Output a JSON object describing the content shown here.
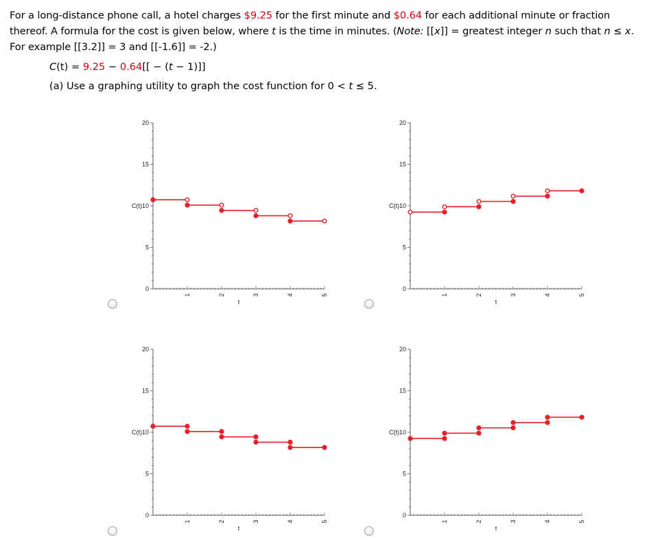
{
  "problem": {
    "line1_a": "For a long-distance phone call, a hotel charges ",
    "price_first": "$9.25",
    "line1_b": " for the first minute and ",
    "price_additional": "$0.64",
    "line1_c": " for each additional minute or fraction",
    "line2_a": "thereof. A formula for the cost is given below, where ",
    "line2_t": "t",
    "line2_b": " is the time in minutes. (",
    "line2_note": "Note:",
    "line2_c": " [[",
    "line2_x": "x",
    "line2_d": "]] = greatest integer ",
    "line2_n": "n",
    "line2_e": " such that ",
    "line2_n2": "n",
    "line2_f": " ≤ ",
    "line2_x2": "x",
    "line2_g": ".",
    "line3": "For example [[3.2]] = 3 and [[-1.6]] = -2.)"
  },
  "formula": {
    "lhs_c": "C",
    "lhs_rest": "(t) = ",
    "const": "9.25",
    "minus": " − ",
    "coef": "0.64",
    "bracket_open": "[[ − (",
    "t": "t",
    "bracket_close": " − 1)]]"
  },
  "part_a": {
    "text_a": "(a) Use a graphing utility to graph the cost function for 0 < ",
    "t": "t",
    "text_b": " ≤ 5."
  },
  "colors": {
    "accent_red": "#d8000c",
    "plot_red": "#e8202a",
    "axis": "#555555"
  },
  "chart_data": [
    {
      "type": "line",
      "option": "top-left",
      "xlabel": "t",
      "ylabel": "C(t)",
      "xlim": [
        0,
        5
      ],
      "ylim": [
        0,
        20
      ],
      "xticks": [
        "1",
        "2",
        "3",
        "4",
        "5"
      ],
      "yticks": [
        "0",
        "5",
        "10",
        "15",
        "20"
      ],
      "segments": [
        {
          "x": [
            0,
            1
          ],
          "y": [
            10.73,
            10.73
          ],
          "left": "closed",
          "right": "open"
        },
        {
          "x": [
            1,
            2
          ],
          "y": [
            10.09,
            10.09
          ],
          "left": "closed",
          "right": "open"
        },
        {
          "x": [
            2,
            3
          ],
          "y": [
            9.45,
            9.45
          ],
          "left": "closed",
          "right": "open"
        },
        {
          "x": [
            3,
            4
          ],
          "y": [
            8.81,
            8.81
          ],
          "left": "closed",
          "right": "open"
        },
        {
          "x": [
            4,
            5
          ],
          "y": [
            8.17,
            8.17
          ],
          "left": "closed",
          "right": "open"
        }
      ]
    },
    {
      "type": "line",
      "option": "top-right",
      "xlabel": "t",
      "ylabel": "C(t)",
      "xlim": [
        0,
        5
      ],
      "ylim": [
        0,
        20
      ],
      "xticks": [
        "1",
        "2",
        "3",
        "4",
        "5"
      ],
      "yticks": [
        "0",
        "5",
        "10",
        "15",
        "20"
      ],
      "segments": [
        {
          "x": [
            0,
            1
          ],
          "y": [
            9.25,
            9.25
          ],
          "left": "open",
          "right": "closed"
        },
        {
          "x": [
            1,
            2
          ],
          "y": [
            9.89,
            9.89
          ],
          "left": "open",
          "right": "closed"
        },
        {
          "x": [
            2,
            3
          ],
          "y": [
            10.53,
            10.53
          ],
          "left": "open",
          "right": "closed"
        },
        {
          "x": [
            3,
            4
          ],
          "y": [
            11.17,
            11.17
          ],
          "left": "open",
          "right": "closed"
        },
        {
          "x": [
            4,
            5
          ],
          "y": [
            11.81,
            11.81
          ],
          "left": "open",
          "right": "closed"
        }
      ]
    },
    {
      "type": "line",
      "option": "bottom-left",
      "xlabel": "t",
      "ylabel": "C(t)",
      "xlim": [
        0,
        5
      ],
      "ylim": [
        0,
        20
      ],
      "xticks": [
        "1",
        "2",
        "3",
        "4",
        "5"
      ],
      "yticks": [
        "0",
        "5",
        "10",
        "15",
        "20"
      ],
      "segments": [
        {
          "x": [
            0,
            1
          ],
          "y": [
            10.73,
            10.73
          ],
          "left": "closed",
          "right": "closed"
        },
        {
          "x": [
            1,
            2
          ],
          "y": [
            10.09,
            10.09
          ],
          "left": "closed",
          "right": "closed"
        },
        {
          "x": [
            2,
            3
          ],
          "y": [
            9.45,
            9.45
          ],
          "left": "closed",
          "right": "closed"
        },
        {
          "x": [
            3,
            4
          ],
          "y": [
            8.81,
            8.81
          ],
          "left": "closed",
          "right": "closed"
        },
        {
          "x": [
            4,
            5
          ],
          "y": [
            8.17,
            8.17
          ],
          "left": "closed",
          "right": "closed"
        }
      ]
    },
    {
      "type": "line",
      "option": "bottom-right",
      "xlabel": "t",
      "ylabel": "C(t)",
      "xlim": [
        0,
        5
      ],
      "ylim": [
        0,
        20
      ],
      "xticks": [
        "1",
        "2",
        "3",
        "4",
        "5"
      ],
      "yticks": [
        "0",
        "5",
        "10",
        "15",
        "20"
      ],
      "segments": [
        {
          "x": [
            0,
            1
          ],
          "y": [
            9.25,
            9.25
          ],
          "left": "closed",
          "right": "closed"
        },
        {
          "x": [
            1,
            2
          ],
          "y": [
            9.89,
            9.89
          ],
          "left": "closed",
          "right": "closed"
        },
        {
          "x": [
            2,
            3
          ],
          "y": [
            10.53,
            10.53
          ],
          "left": "closed",
          "right": "closed"
        },
        {
          "x": [
            3,
            4
          ],
          "y": [
            11.17,
            11.17
          ],
          "left": "closed",
          "right": "closed"
        },
        {
          "x": [
            4,
            5
          ],
          "y": [
            11.81,
            11.81
          ],
          "left": "closed",
          "right": "closed"
        }
      ]
    }
  ]
}
